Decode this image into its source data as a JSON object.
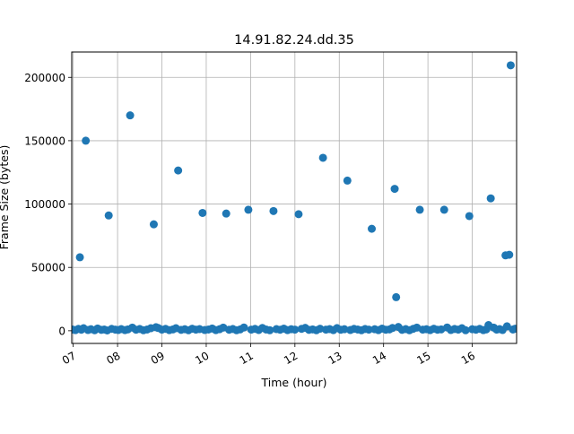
{
  "chart_data": {
    "type": "scatter",
    "title": "14.91.82.24.dd.35",
    "xlabel": "Time (hour)",
    "ylabel": "Frame Size (bytes)",
    "x_ticks": [
      "07",
      "08",
      "09",
      "10",
      "11",
      "12",
      "13",
      "14",
      "15",
      "16"
    ],
    "y_ticks": [
      "0",
      "50000",
      "100000",
      "150000",
      "200000"
    ],
    "xlim": [
      "06:58",
      "17:00"
    ],
    "ylim": [
      -10000,
      220000
    ],
    "grid": true,
    "marker_color": "#1f77b4",
    "large_frames": [
      {
        "x": "07:09",
        "y": 58000
      },
      {
        "x": "07:17",
        "y": 150000
      },
      {
        "x": "07:48",
        "y": 91000
      },
      {
        "x": "08:17",
        "y": 170000
      },
      {
        "x": "08:49",
        "y": 84000
      },
      {
        "x": "09:22",
        "y": 126500
      },
      {
        "x": "09:55",
        "y": 93000
      },
      {
        "x": "10:27",
        "y": 92500
      },
      {
        "x": "10:57",
        "y": 95500
      },
      {
        "x": "11:31",
        "y": 94500
      },
      {
        "x": "12:05",
        "y": 92000
      },
      {
        "x": "12:38",
        "y": 136500
      },
      {
        "x": "13:11",
        "y": 118500
      },
      {
        "x": "13:44",
        "y": 80500
      },
      {
        "x": "14:15",
        "y": 112000
      },
      {
        "x": "14:17",
        "y": 26500
      },
      {
        "x": "14:49",
        "y": 95500
      },
      {
        "x": "15:22",
        "y": 95500
      },
      {
        "x": "15:56",
        "y": 90500
      },
      {
        "x": "16:25",
        "y": 104500
      },
      {
        "x": "16:45",
        "y": 59500
      },
      {
        "x": "16:50",
        "y": 60000
      },
      {
        "x": "16:52",
        "y": 209500
      }
    ],
    "small_frames": [
      {
        "x": "06:59",
        "y": 1000
      },
      {
        "x": "07:03",
        "y": 500
      },
      {
        "x": "07:07",
        "y": 1500
      },
      {
        "x": "07:11",
        "y": 800
      },
      {
        "x": "07:14",
        "y": 2000
      },
      {
        "x": "07:20",
        "y": 600
      },
      {
        "x": "07:24",
        "y": 1200
      },
      {
        "x": "07:29",
        "y": 400
      },
      {
        "x": "07:33",
        "y": 1800
      },
      {
        "x": "07:38",
        "y": 700
      },
      {
        "x": "07:42",
        "y": 1000
      },
      {
        "x": "07:46",
        "y": 300
      },
      {
        "x": "07:52",
        "y": 1500
      },
      {
        "x": "07:57",
        "y": 900
      },
      {
        "x": "08:01",
        "y": 600
      },
      {
        "x": "08:05",
        "y": 1300
      },
      {
        "x": "08:10",
        "y": 500
      },
      {
        "x": "08:14",
        "y": 1100
      },
      {
        "x": "08:20",
        "y": 2500
      },
      {
        "x": "08:25",
        "y": 800
      },
      {
        "x": "08:30",
        "y": 1400
      },
      {
        "x": "08:35",
        "y": 400
      },
      {
        "x": "08:40",
        "y": 1000
      },
      {
        "x": "08:45",
        "y": 2000
      },
      {
        "x": "08:52",
        "y": 2800
      },
      {
        "x": "08:55",
        "y": 2200
      },
      {
        "x": "09:00",
        "y": 900
      },
      {
        "x": "09:05",
        "y": 1500
      },
      {
        "x": "09:10",
        "y": 500
      },
      {
        "x": "09:15",
        "y": 1100
      },
      {
        "x": "09:19",
        "y": 2000
      },
      {
        "x": "09:26",
        "y": 700
      },
      {
        "x": "09:31",
        "y": 1200
      },
      {
        "x": "09:36",
        "y": 400
      },
      {
        "x": "09:41",
        "y": 1600
      },
      {
        "x": "09:46",
        "y": 900
      },
      {
        "x": "09:51",
        "y": 1300
      },
      {
        "x": "09:58",
        "y": 600
      },
      {
        "x": "10:03",
        "y": 1000
      },
      {
        "x": "10:08",
        "y": 1800
      },
      {
        "x": "10:13",
        "y": 500
      },
      {
        "x": "10:18",
        "y": 1200
      },
      {
        "x": "10:23",
        "y": 2500
      },
      {
        "x": "10:31",
        "y": 800
      },
      {
        "x": "10:36",
        "y": 1400
      },
      {
        "x": "10:41",
        "y": 400
      },
      {
        "x": "10:46",
        "y": 1100
      },
      {
        "x": "10:51",
        "y": 2600
      },
      {
        "x": "11:01",
        "y": 900
      },
      {
        "x": "11:06",
        "y": 1500
      },
      {
        "x": "11:11",
        "y": 600
      },
      {
        "x": "11:16",
        "y": 2200
      },
      {
        "x": "11:21",
        "y": 1000
      },
      {
        "x": "11:26",
        "y": 400
      },
      {
        "x": "11:35",
        "y": 1300
      },
      {
        "x": "11:40",
        "y": 800
      },
      {
        "x": "11:45",
        "y": 1700
      },
      {
        "x": "11:50",
        "y": 500
      },
      {
        "x": "11:55",
        "y": 1200
      },
      {
        "x": "12:00",
        "y": 900
      },
      {
        "x": "12:09",
        "y": 1500
      },
      {
        "x": "12:14",
        "y": 2300
      },
      {
        "x": "12:19",
        "y": 700
      },
      {
        "x": "12:24",
        "y": 1100
      },
      {
        "x": "12:29",
        "y": 400
      },
      {
        "x": "12:34",
        "y": 1600
      },
      {
        "x": "12:42",
        "y": 900
      },
      {
        "x": "12:47",
        "y": 1300
      },
      {
        "x": "12:52",
        "y": 500
      },
      {
        "x": "12:57",
        "y": 2100
      },
      {
        "x": "13:02",
        "y": 800
      },
      {
        "x": "13:07",
        "y": 1200
      },
      {
        "x": "13:15",
        "y": 600
      },
      {
        "x": "13:20",
        "y": 1500
      },
      {
        "x": "13:25",
        "y": 1000
      },
      {
        "x": "13:30",
        "y": 400
      },
      {
        "x": "13:35",
        "y": 1400
      },
      {
        "x": "13:40",
        "y": 900
      },
      {
        "x": "13:48",
        "y": 1200
      },
      {
        "x": "13:53",
        "y": 500
      },
      {
        "x": "13:58",
        "y": 1700
      },
      {
        "x": "14:03",
        "y": 800
      },
      {
        "x": "14:08",
        "y": 1100
      },
      {
        "x": "14:12",
        "y": 2200
      },
      {
        "x": "14:20",
        "y": 3000
      },
      {
        "x": "14:25",
        "y": 700
      },
      {
        "x": "14:30",
        "y": 1300
      },
      {
        "x": "14:35",
        "y": 400
      },
      {
        "x": "14:40",
        "y": 1500
      },
      {
        "x": "14:45",
        "y": 2500
      },
      {
        "x": "14:53",
        "y": 900
      },
      {
        "x": "14:58",
        "y": 1200
      },
      {
        "x": "15:03",
        "y": 500
      },
      {
        "x": "15:08",
        "y": 1600
      },
      {
        "x": "15:13",
        "y": 800
      },
      {
        "x": "15:18",
        "y": 1100
      },
      {
        "x": "15:26",
        "y": 2600
      },
      {
        "x": "15:31",
        "y": 600
      },
      {
        "x": "15:36",
        "y": 1400
      },
      {
        "x": "15:41",
        "y": 900
      },
      {
        "x": "15:46",
        "y": 2000
      },
      {
        "x": "15:51",
        "y": 400
      },
      {
        "x": "16:00",
        "y": 1200
      },
      {
        "x": "16:05",
        "y": 800
      },
      {
        "x": "16:10",
        "y": 1500
      },
      {
        "x": "16:15",
        "y": 500
      },
      {
        "x": "16:19",
        "y": 1100
      },
      {
        "x": "16:22",
        "y": 4500
      },
      {
        "x": "16:29",
        "y": 2500
      },
      {
        "x": "16:33",
        "y": 900
      },
      {
        "x": "16:37",
        "y": 1300
      },
      {
        "x": "16:41",
        "y": 600
      },
      {
        "x": "16:47",
        "y": 3500
      },
      {
        "x": "16:55",
        "y": 1000
      },
      {
        "x": "16:58",
        "y": 1600
      }
    ]
  }
}
